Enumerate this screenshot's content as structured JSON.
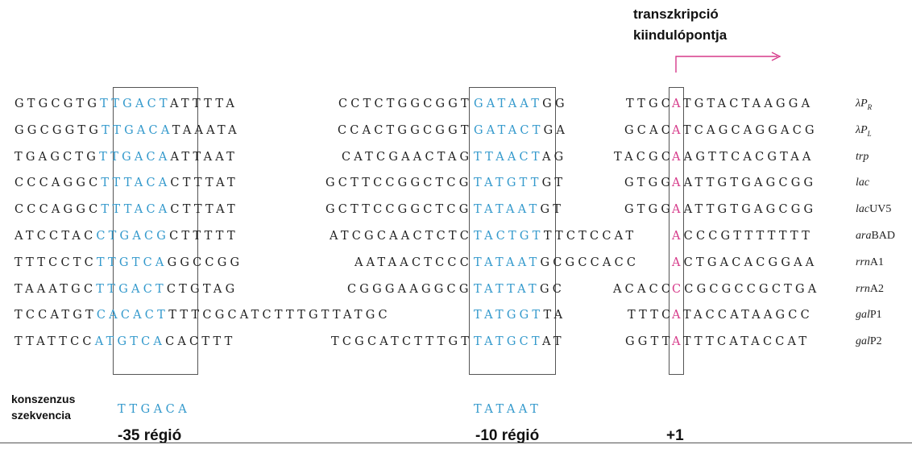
{
  "header": {
    "tss_label_line1": "transzkripció",
    "tss_label_line2": "kiindulópontja"
  },
  "colors": {
    "highlight": "#3399cc",
    "start_site": "#d63a8a",
    "arrow": "#d63a8a",
    "box": "#555555"
  },
  "rows": [
    {
      "seg1": "GTGCGTG",
      "m35": "TTGACT",
      "seg2": "ATTTTA",
      "spacer": "CCTCTGGCGGT",
      "m10": "GATAAT",
      "seg3": "GG",
      "pre": "TTGC",
      "tss": "A",
      "post": "TGTACTAAGGA",
      "promoter": {
        "prefix": "λP",
        "sub": "R",
        "suffix": ""
      }
    },
    {
      "seg1": "GGCGGTG",
      "m35": "TTGACA",
      "seg2": "TAAATA",
      "spacer": "CCACTGGCGGT",
      "m10": "GATACT",
      "seg3": "GA",
      "pre": "GCAC",
      "tss": "A",
      "post": "TCAGCAGGACG",
      "promoter": {
        "prefix": "λP",
        "sub": "L",
        "suffix": ""
      }
    },
    {
      "seg1": "TGAGCTG",
      "m35": "TTGACA",
      "seg2": "ATTAAT",
      "spacer": "CATCGAACTAG",
      "m10": "TTAACT",
      "seg3": "AG",
      "pre": "TACGC",
      "tss": "A",
      "post": "AGTTCACGTAA",
      "promoter": {
        "prefix": "trp",
        "sub": "",
        "suffix": ""
      }
    },
    {
      "seg1": "CCCAGGC",
      "m35": "TTTACA",
      "seg2": "CTTTAT",
      "spacer": "GCTTCCGGCTCG",
      "m10": "TATGTT",
      "seg3": "GT",
      "pre": "GTGG",
      "tss": "A",
      "post": "ATTGTGAGCGG",
      "promoter": {
        "prefix": "lac",
        "sub": "",
        "suffix": ""
      }
    },
    {
      "seg1": "CCCAGGC",
      "m35": "TTTACA",
      "seg2": "CTTTAT",
      "spacer": "GCTTCCGGCTCG",
      "m10": "TATAAT",
      "seg3": "GT",
      "pre": "GTGG",
      "tss": "A",
      "post": "ATTGTGAGCGG",
      "promoter": {
        "prefix": "lac",
        "sub": "",
        "suffix": "UV5"
      }
    },
    {
      "seg1": "ATCCTAC",
      "m35": "CTGACG",
      "seg2": "CTTTTT",
      "spacer": "ATCGCAACTCTC",
      "m10": "TACTGT",
      "seg3": "TTCTCCAT",
      "pre": "",
      "tss": "A",
      "post": "CCCGTTTTTTT",
      "promoter": {
        "prefix": "ara",
        "sub": "",
        "suffix": "BAD"
      }
    },
    {
      "seg1": "TTTCCTC",
      "m35": "TTGTCA",
      "seg2": "GGCCGG",
      "spacer": "AATAACTCCC",
      "m10": "TATAAT",
      "seg3": "GCGCCACC",
      "pre": "",
      "tss": "A",
      "post": "CTGACACGGAA",
      "promoter": {
        "prefix": "rrn",
        "sub": "",
        "suffix": "A1"
      }
    },
    {
      "seg1": "TAAATGC",
      "m35": "TTGACT",
      "seg2": "CTGTAG",
      "spacer": "CGGGAAGGCG",
      "m10": "TATTAT",
      "seg3": "GC",
      "pre": "ACACC",
      "tss": "C",
      "post": "CGCGCCGCTGA",
      "promoter": {
        "prefix": "rrn",
        "sub": "",
        "suffix": "A2"
      }
    },
    {
      "seg1": "TCCATGT",
      "m35": "CACACT",
      "seg2": "TTTCGCATCTTTGTTATGC",
      "spacer": "",
      "m10": "TATGGT",
      "seg3": "TA",
      "pre": "TTTC",
      "tss": "A",
      "post": "TACCATAAGCC",
      "promoter": {
        "prefix": "gal",
        "sub": "",
        "suffix": "P1"
      }
    },
    {
      "seg1": "TTATTCC",
      "m35": "ATGTCA",
      "seg2": "CACTTT",
      "spacer": "TCGCATCTTTGT",
      "m10": "TATGCT",
      "seg3": "AT",
      "pre": "GGTT",
      "tss": "A",
      "post": "TTTCATACCAT",
      "promoter": {
        "prefix": "gal",
        "sub": "",
        "suffix": "P2"
      }
    }
  ],
  "footer": {
    "consensus_label_line1": "konszenzus",
    "consensus_label_line2": "szekvencia",
    "consensus_35": "TTGACA",
    "consensus_10": "TATAAT",
    "region_35": "-35 régió",
    "region_10": "-10 régió",
    "plus_one": "+1"
  }
}
